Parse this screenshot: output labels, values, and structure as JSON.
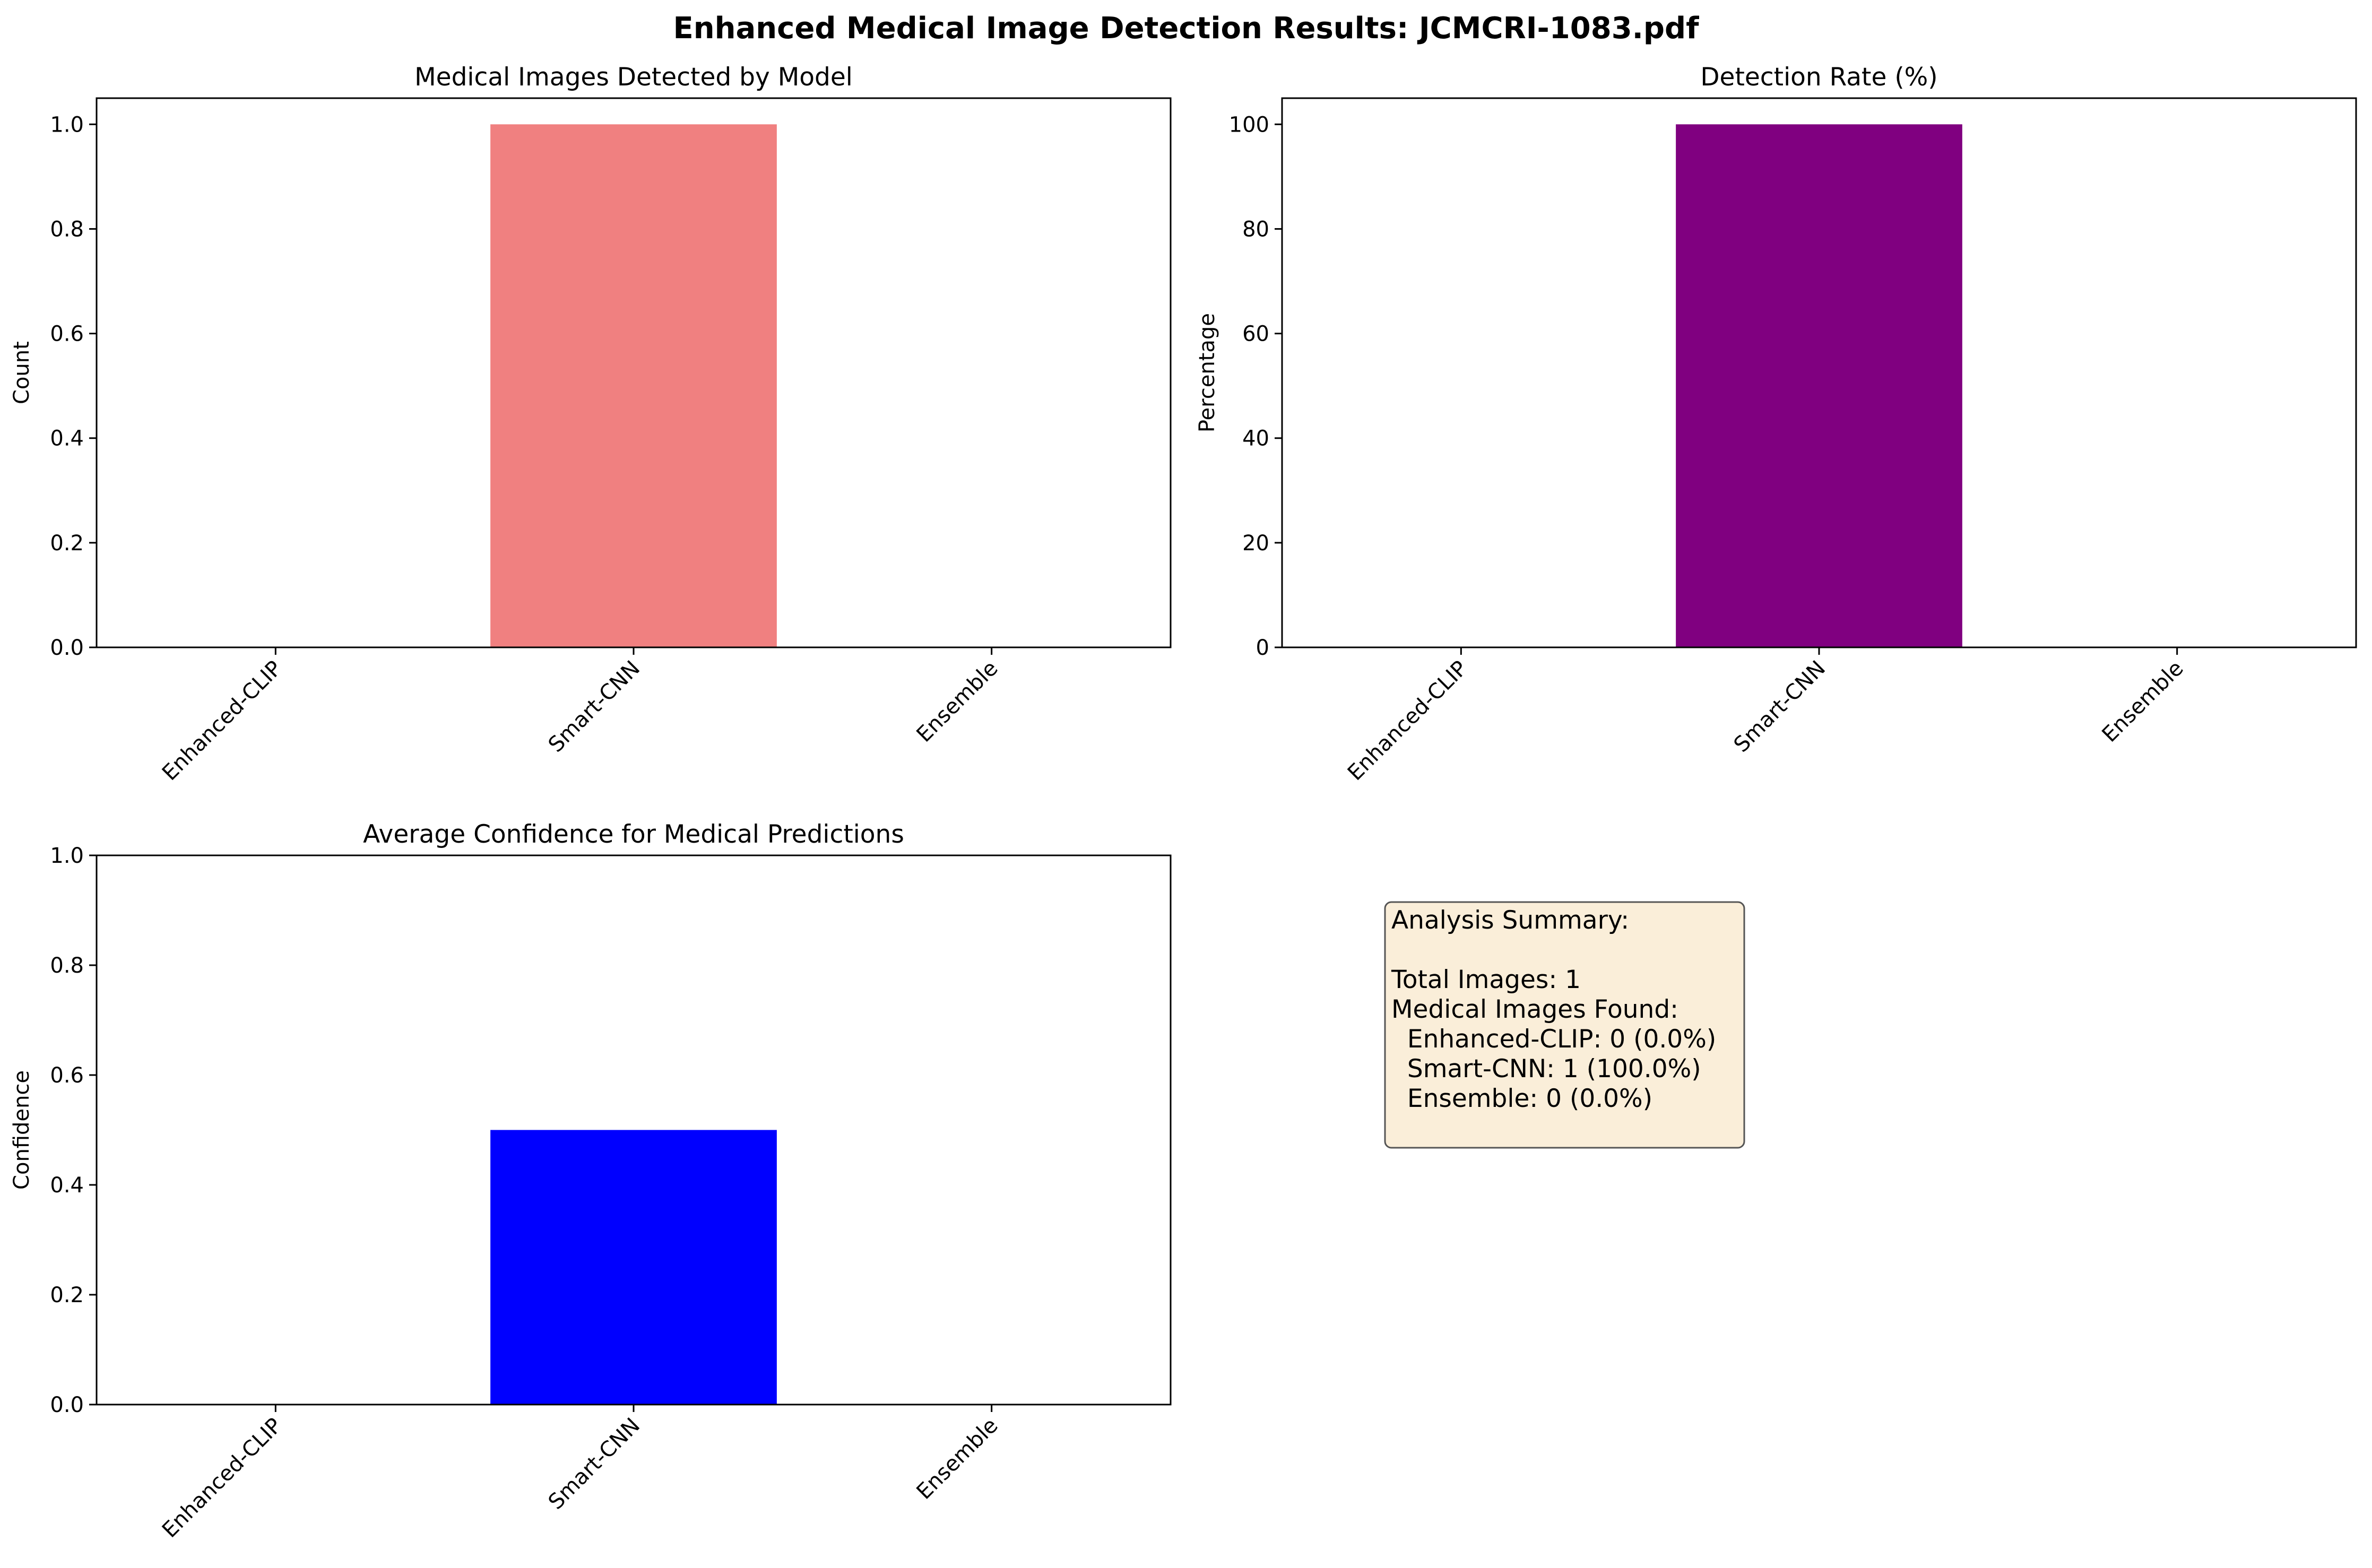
{
  "title": "Enhanced Medical Image Detection Results: JCMCRI-1083.pdf",
  "chart_data": [
    {
      "type": "bar",
      "title": "Medical Images Detected by Model",
      "xlabel": "",
      "ylabel": "Count",
      "categories": [
        "Enhanced-CLIP",
        "Smart-CNN",
        "Ensemble"
      ],
      "values": [
        0,
        1,
        0
      ],
      "colors": [
        "#F08080",
        "#F08080",
        "#F08080"
      ],
      "ylim": [
        0,
        1.05
      ],
      "yticks": [
        0.0,
        0.2,
        0.4,
        0.6,
        0.8,
        1.0
      ],
      "ytick_labels": [
        "0.0",
        "0.2",
        "0.4",
        "0.6",
        "0.8",
        "1.0"
      ],
      "grid": false
    },
    {
      "type": "bar",
      "title": "Detection Rate (%)",
      "xlabel": "",
      "ylabel": "Percentage",
      "categories": [
        "Enhanced-CLIP",
        "Smart-CNN",
        "Ensemble"
      ],
      "values": [
        0,
        100,
        0
      ],
      "colors": [
        "#800080",
        "#800080",
        "#800080"
      ],
      "ylim": [
        0,
        105
      ],
      "yticks": [
        0,
        20,
        40,
        60,
        80,
        100
      ],
      "ytick_labels": [
        "0",
        "20",
        "40",
        "60",
        "80",
        "100"
      ],
      "grid": false
    },
    {
      "type": "bar",
      "title": "Average Confidence for Medical Predictions",
      "xlabel": "",
      "ylabel": "Confidence",
      "categories": [
        "Enhanced-CLIP",
        "Smart-CNN",
        "Ensemble"
      ],
      "values": [
        0,
        0.5,
        0
      ],
      "colors": [
        "#0000FF",
        "#0000FF",
        "#0000FF"
      ],
      "ylim": [
        0,
        1.0
      ],
      "yticks": [
        0.0,
        0.2,
        0.4,
        0.6,
        0.8,
        1.0
      ],
      "ytick_labels": [
        "0.0",
        "0.2",
        "0.4",
        "0.6",
        "0.8",
        "1.0"
      ],
      "grid": false
    }
  ],
  "summary": {
    "lines": [
      "Analysis Summary:",
      "",
      "Total Images: 1",
      "Medical Images Found:",
      "  Enhanced-CLIP: 0 (0.0%)",
      "  Smart-CNN: 1 (100.0%)",
      "  Ensemble: 0 (0.0%)"
    ],
    "box_color": "#F5DEB3"
  }
}
